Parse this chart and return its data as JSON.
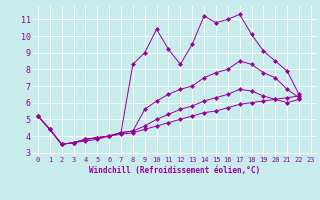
{
  "xlabel": "Windchill (Refroidissement éolien,°C)",
  "bg_color": "#c8ecec",
  "line_color": "#990099",
  "grid_color": "#ffffff",
  "xlim": [
    -0.5,
    23.5
  ],
  "ylim": [
    2.8,
    11.8
  ],
  "yticks": [
    3,
    4,
    5,
    6,
    7,
    8,
    9,
    10,
    11
  ],
  "xticks": [
    0,
    1,
    2,
    3,
    4,
    5,
    6,
    7,
    8,
    9,
    10,
    11,
    12,
    13,
    14,
    15,
    16,
    17,
    18,
    19,
    20,
    21,
    22,
    23
  ],
  "series": [
    [
      5.2,
      4.4,
      3.5,
      3.6,
      3.7,
      3.8,
      4.0,
      4.2,
      8.3,
      9.0,
      10.4,
      9.2,
      8.3,
      9.5,
      11.2,
      10.8,
      11.0,
      11.3,
      10.1,
      9.1,
      8.5,
      7.9,
      6.5,
      null
    ],
    [
      5.2,
      4.4,
      3.5,
      3.6,
      3.8,
      3.9,
      4.0,
      4.2,
      4.3,
      5.6,
      6.1,
      6.5,
      6.8,
      7.0,
      7.5,
      7.8,
      8.0,
      8.5,
      8.3,
      7.8,
      7.5,
      6.8,
      6.3,
      null
    ],
    [
      5.2,
      4.4,
      3.5,
      3.6,
      3.8,
      3.9,
      4.0,
      4.2,
      4.3,
      4.6,
      5.0,
      5.3,
      5.6,
      5.8,
      6.1,
      6.3,
      6.5,
      6.8,
      6.7,
      6.4,
      6.2,
      6.0,
      6.2,
      null
    ],
    [
      5.2,
      4.4,
      3.5,
      3.6,
      3.8,
      3.9,
      4.0,
      4.1,
      4.2,
      4.4,
      4.6,
      4.8,
      5.0,
      5.2,
      5.4,
      5.5,
      5.7,
      5.9,
      6.0,
      6.1,
      6.2,
      6.3,
      6.4,
      null
    ]
  ],
  "marker": "D",
  "markersize": 2.5,
  "linewidth": 0.7,
  "tick_fontsize": 5,
  "xlabel_fontsize": 5.5,
  "ylabel_fontsize": 6
}
